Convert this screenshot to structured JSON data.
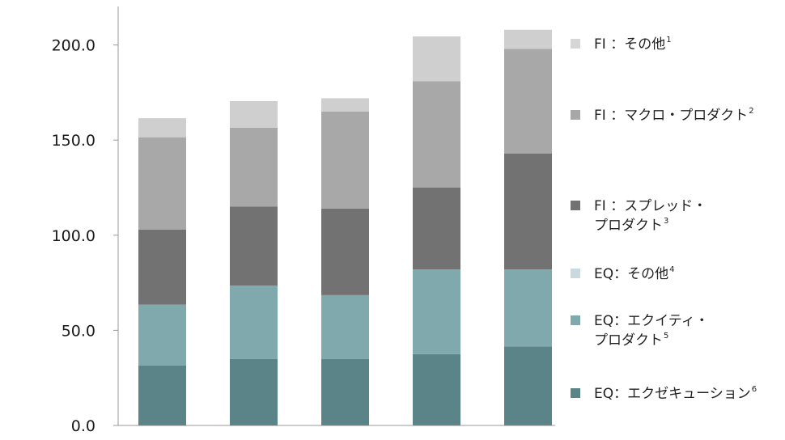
{
  "chart_data": {
    "type": "bar",
    "stacked": true,
    "categories": [
      "",
      "",
      "",
      "",
      ""
    ],
    "ylim": [
      0,
      220
    ],
    "yticks": [
      "0.0",
      "50.0",
      "100.0",
      "150.0",
      "200.0"
    ],
    "title": "",
    "xlabel": "",
    "ylabel": "",
    "legend_position": "right",
    "series": [
      {
        "name": "EQ：エクゼキューション",
        "footnote": "6",
        "color": "#5b8489",
        "values": [
          31.5,
          35,
          35,
          37.5,
          41.5
        ]
      },
      {
        "name": "EQ：エクイティ・プロダクト",
        "footnote": "5",
        "color": "#80a9ae",
        "values": [
          32,
          38.5,
          33.5,
          44.5,
          40.5
        ]
      },
      {
        "name": "EQ：その他",
        "footnote": "4",
        "color": "#c8dadd",
        "values": [
          0,
          0,
          0,
          0,
          0
        ]
      },
      {
        "name": "FI ：スプレッド・プロダクト",
        "footnote": "3",
        "color": "#727272",
        "values": [
          39.5,
          41.5,
          45.5,
          43,
          61
        ]
      },
      {
        "name": "FI ：マクロ・プロダクト",
        "footnote": "2",
        "color": "#a8a8a8",
        "values": [
          48.5,
          41.5,
          51,
          56,
          55
        ]
      },
      {
        "name": "FI ：その他",
        "footnote": "1",
        "color": "#cfcfcf",
        "values": [
          10,
          14,
          7,
          23.5,
          10
        ]
      }
    ]
  },
  "legend": [
    {
      "lines": [
        "FI ：その他"
      ],
      "sup": "1",
      "color": "#d6d6d6"
    },
    {
      "lines": [
        "FI ：マクロ・プロダクト"
      ],
      "sup": "2",
      "color": "#a8a8a8"
    },
    {
      "lines": [
        "FI ：スプレッド・",
        "プロダクト"
      ],
      "sup": "3",
      "color": "#727272"
    },
    {
      "lines": [
        "EQ：その他"
      ],
      "sup": "4",
      "color": "#c8dadd"
    },
    {
      "lines": [
        "EQ：エクイティ・",
        "プロダクト"
      ],
      "sup": "5",
      "color": "#80a9ae"
    },
    {
      "lines": [
        "EQ：エクゼキューション"
      ],
      "sup": "6",
      "color": "#5b8489"
    }
  ]
}
